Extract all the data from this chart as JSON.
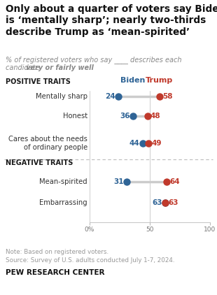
{
  "title": "Only about a quarter of voters say Biden\nis ‘mentally sharp’; nearly two-thirds\ndescribe Trump as ‘mean-spirited’",
  "subtitle_part1": "% of registered voters who say ",
  "subtitle_underline": "____",
  "subtitle_part2": " describes each",
  "subtitle_line2": "candidate ",
  "subtitle_bold": "very or fairly well",
  "positive_label": "POSITIVE TRAITS",
  "negative_label": "NEGATIVE TRAITS",
  "biden_label": "Biden",
  "trump_label": "Trump",
  "traits": [
    {
      "name": "Mentally sharp",
      "biden": 24,
      "trump": 58,
      "section": "positive",
      "multiline": false
    },
    {
      "name": "Honest",
      "biden": 36,
      "trump": 48,
      "section": "positive",
      "multiline": false
    },
    {
      "name": "Cares about the needs\nof ordinary people",
      "biden": 44,
      "trump": 49,
      "section": "positive",
      "multiline": true
    },
    {
      "name": "Mean-spirited",
      "biden": 31,
      "trump": 64,
      "section": "negative",
      "multiline": false
    },
    {
      "name": "Embarrassing",
      "biden": 63,
      "trump": 63,
      "section": "negative",
      "multiline": false
    }
  ],
  "biden_color": "#2f6496",
  "trump_color": "#c0392b",
  "line_color": "#cccccc",
  "note": "Note: Based on registered voters.",
  "source": "Source: Survey of U.S. adults conducted July 1-7, 2024.",
  "footer": "PEW RESEARCH CENTER",
  "bg_color": "#ffffff",
  "section_label_color": "#1a1a1a",
  "trait_color": "#333333",
  "subtitle_color": "#888888",
  "note_color": "#999999",
  "separator_color": "#bbbbbb"
}
